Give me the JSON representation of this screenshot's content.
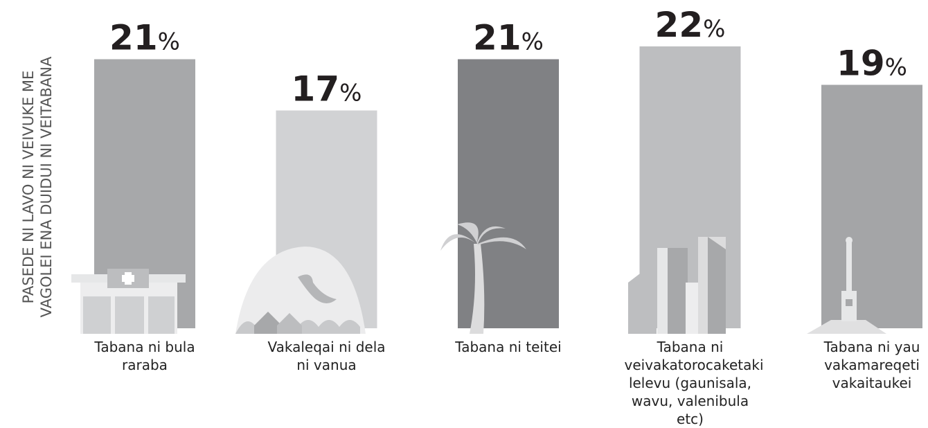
{
  "chart_data": {
    "type": "bar",
    "ylabel": [
      "PASEDE NI LAVO NI VEIVUKE ME",
      "VAGOLEI ENA DUIDUI NI VEITABANA"
    ],
    "categories": [
      "Tabana ni bula raraba",
      "Vakaleqai ni dela ni vanua",
      "Tabana ni teitei",
      "Tabana ni veivakatorocaketaki lelevu (gaunisala, wavu, valenibula etc)",
      "Tabana ni yau vakamareqeti vakaitaukei"
    ],
    "values": [
      21,
      17,
      21,
      22,
      19
    ],
    "value_labels": [
      "21%",
      "17%",
      "21%",
      "22%",
      "19%"
    ],
    "colors": [
      "#a7a8aa",
      "#d1d2d4",
      "#808184",
      "#bdbec0",
      "#a4a5a7"
    ]
  }
}
